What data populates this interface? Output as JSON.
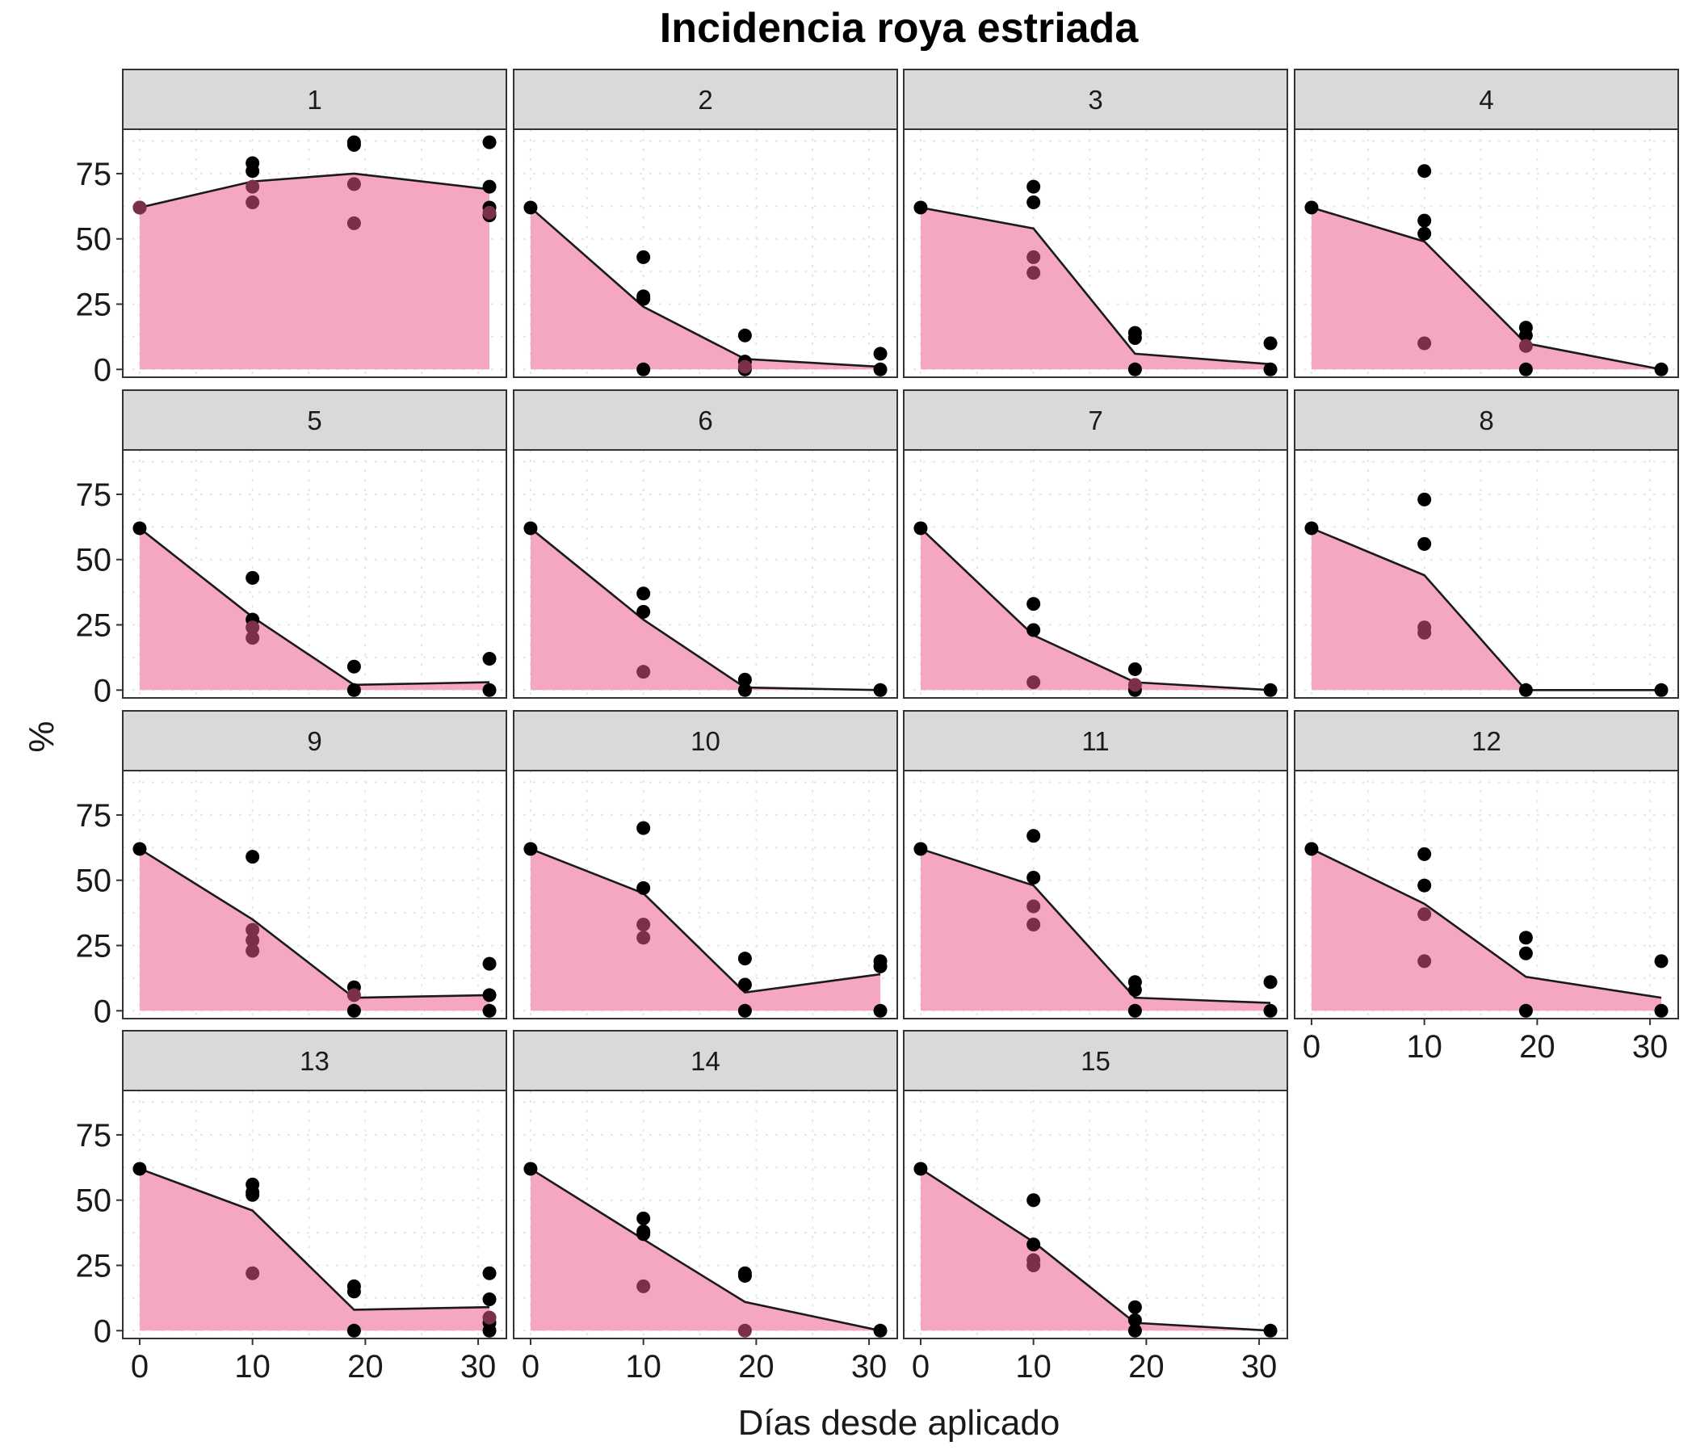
{
  "chart_data": {
    "type": "area",
    "title": "Incidencia roya estriada",
    "xlabel": "Días desde aplicado",
    "ylabel": "%",
    "xlim": [
      -1.5,
      32.5
    ],
    "ylim": [
      -3,
      92
    ],
    "x_ticks": [
      0,
      10,
      20,
      30
    ],
    "y_ticks": [
      0,
      25,
      50,
      75
    ],
    "grid": "dotted",
    "colors": {
      "area_fill": "#f4a6c2",
      "line": "#1a1a1a",
      "point": "#000000",
      "point_alt": "#7a3049",
      "strip_bg": "#d9d9d9",
      "panel_border": "#333333",
      "grid": "#e6e6e6"
    },
    "panels": [
      {
        "label": "1",
        "line": [
          [
            0,
            62
          ],
          [
            10,
            72
          ],
          [
            19,
            75
          ],
          [
            31,
            69
          ]
        ],
        "points": [
          [
            0,
            62
          ],
          [
            10,
            79
          ],
          [
            10,
            76
          ],
          [
            19,
            86
          ],
          [
            19,
            87
          ],
          [
            31,
            87
          ],
          [
            31,
            70
          ],
          [
            31,
            62
          ],
          [
            31,
            59
          ]
        ],
        "points_alt": [
          [
            0,
            62
          ],
          [
            10,
            70
          ],
          [
            10,
            64
          ],
          [
            19,
            71
          ],
          [
            19,
            56
          ],
          [
            31,
            60
          ]
        ]
      },
      {
        "label": "2",
        "line": [
          [
            0,
            62
          ],
          [
            10,
            24
          ],
          [
            19,
            4
          ],
          [
            31,
            1
          ]
        ],
        "points": [
          [
            0,
            62
          ],
          [
            10,
            43
          ],
          [
            10,
            28
          ],
          [
            10,
            27
          ],
          [
            10,
            0
          ],
          [
            19,
            13
          ],
          [
            19,
            3
          ],
          [
            19,
            0
          ],
          [
            31,
            6
          ],
          [
            31,
            0
          ]
        ],
        "points_alt": [
          [
            19,
            1
          ]
        ]
      },
      {
        "label": "3",
        "line": [
          [
            0,
            62
          ],
          [
            10,
            54
          ],
          [
            19,
            6
          ],
          [
            31,
            2
          ]
        ],
        "points": [
          [
            0,
            62
          ],
          [
            10,
            70
          ],
          [
            10,
            64
          ],
          [
            19,
            14
          ],
          [
            19,
            12
          ],
          [
            19,
            0
          ],
          [
            31,
            10
          ],
          [
            31,
            0
          ]
        ],
        "points_alt": [
          [
            10,
            43
          ],
          [
            10,
            37
          ]
        ]
      },
      {
        "label": "4",
        "line": [
          [
            0,
            62
          ],
          [
            10,
            49
          ],
          [
            19,
            10
          ],
          [
            31,
            0
          ]
        ],
        "points": [
          [
            0,
            62
          ],
          [
            10,
            76
          ],
          [
            10,
            57
          ],
          [
            10,
            52
          ],
          [
            19,
            16
          ],
          [
            19,
            13
          ],
          [
            19,
            0
          ],
          [
            31,
            0
          ]
        ],
        "points_alt": [
          [
            10,
            10
          ],
          [
            19,
            9
          ]
        ]
      },
      {
        "label": "5",
        "line": [
          [
            0,
            62
          ],
          [
            10,
            28
          ],
          [
            19,
            2
          ],
          [
            31,
            3
          ]
        ],
        "points": [
          [
            0,
            62
          ],
          [
            10,
            43
          ],
          [
            10,
            27
          ],
          [
            19,
            9
          ],
          [
            19,
            0
          ],
          [
            31,
            12
          ],
          [
            31,
            0
          ]
        ],
        "points_alt": [
          [
            10,
            24
          ],
          [
            10,
            20
          ]
        ]
      },
      {
        "label": "6",
        "line": [
          [
            0,
            62
          ],
          [
            10,
            27
          ],
          [
            19,
            1
          ],
          [
            31,
            0
          ]
        ],
        "points": [
          [
            0,
            62
          ],
          [
            10,
            37
          ],
          [
            10,
            30
          ],
          [
            19,
            4
          ],
          [
            19,
            0
          ],
          [
            31,
            0
          ]
        ],
        "points_alt": [
          [
            10,
            7
          ]
        ]
      },
      {
        "label": "7",
        "line": [
          [
            0,
            62
          ],
          [
            10,
            21
          ],
          [
            19,
            3
          ],
          [
            31,
            0
          ]
        ],
        "points": [
          [
            0,
            62
          ],
          [
            10,
            33
          ],
          [
            10,
            23
          ],
          [
            19,
            8
          ],
          [
            19,
            0
          ],
          [
            31,
            0
          ]
        ],
        "points_alt": [
          [
            10,
            3
          ],
          [
            19,
            2
          ]
        ]
      },
      {
        "label": "8",
        "line": [
          [
            0,
            62
          ],
          [
            10,
            44
          ],
          [
            19,
            0
          ],
          [
            31,
            0
          ]
        ],
        "points": [
          [
            0,
            62
          ],
          [
            10,
            73
          ],
          [
            10,
            56
          ],
          [
            19,
            0
          ],
          [
            31,
            0
          ]
        ],
        "points_alt": [
          [
            10,
            24
          ],
          [
            10,
            22
          ]
        ]
      },
      {
        "label": "9",
        "line": [
          [
            0,
            62
          ],
          [
            10,
            35
          ],
          [
            19,
            5
          ],
          [
            31,
            6
          ]
        ],
        "points": [
          [
            0,
            62
          ],
          [
            10,
            59
          ],
          [
            19,
            9
          ],
          [
            19,
            0
          ],
          [
            31,
            18
          ],
          [
            31,
            6
          ],
          [
            31,
            0
          ]
        ],
        "points_alt": [
          [
            10,
            31
          ],
          [
            10,
            27
          ],
          [
            10,
            23
          ],
          [
            19,
            6
          ]
        ]
      },
      {
        "label": "10",
        "line": [
          [
            0,
            62
          ],
          [
            10,
            45
          ],
          [
            19,
            7
          ],
          [
            31,
            14
          ]
        ],
        "points": [
          [
            0,
            62
          ],
          [
            10,
            70
          ],
          [
            10,
            47
          ],
          [
            19,
            20
          ],
          [
            19,
            10
          ],
          [
            19,
            0
          ],
          [
            31,
            19
          ],
          [
            31,
            17
          ],
          [
            31,
            0
          ]
        ],
        "points_alt": [
          [
            10,
            33
          ],
          [
            10,
            28
          ]
        ]
      },
      {
        "label": "11",
        "line": [
          [
            0,
            62
          ],
          [
            10,
            48
          ],
          [
            19,
            5
          ],
          [
            31,
            3
          ]
        ],
        "points": [
          [
            0,
            62
          ],
          [
            10,
            67
          ],
          [
            10,
            51
          ],
          [
            19,
            11
          ],
          [
            19,
            8
          ],
          [
            19,
            0
          ],
          [
            31,
            11
          ],
          [
            31,
            0
          ]
        ],
        "points_alt": [
          [
            10,
            40
          ],
          [
            10,
            33
          ]
        ]
      },
      {
        "label": "12",
        "line": [
          [
            0,
            62
          ],
          [
            10,
            41
          ],
          [
            19,
            13
          ],
          [
            31,
            5
          ]
        ],
        "points": [
          [
            0,
            62
          ],
          [
            10,
            60
          ],
          [
            10,
            48
          ],
          [
            19,
            28
          ],
          [
            19,
            22
          ],
          [
            19,
            0
          ],
          [
            31,
            19
          ],
          [
            31,
            0
          ]
        ],
        "points_alt": [
          [
            10,
            37
          ],
          [
            10,
            19
          ]
        ]
      },
      {
        "label": "13",
        "line": [
          [
            0,
            62
          ],
          [
            10,
            46
          ],
          [
            19,
            8
          ],
          [
            31,
            9
          ]
        ],
        "points": [
          [
            0,
            62
          ],
          [
            10,
            56
          ],
          [
            10,
            53
          ],
          [
            10,
            52
          ],
          [
            19,
            17
          ],
          [
            19,
            15
          ],
          [
            19,
            0
          ],
          [
            31,
            22
          ],
          [
            31,
            12
          ],
          [
            31,
            3
          ],
          [
            31,
            0
          ]
        ],
        "points_alt": [
          [
            10,
            22
          ],
          [
            31,
            5
          ]
        ]
      },
      {
        "label": "14",
        "line": [
          [
            0,
            62
          ],
          [
            10,
            35
          ],
          [
            19,
            11
          ],
          [
            31,
            0
          ]
        ],
        "points": [
          [
            0,
            62
          ],
          [
            10,
            43
          ],
          [
            10,
            38
          ],
          [
            10,
            37
          ],
          [
            19,
            22
          ],
          [
            19,
            21
          ],
          [
            31,
            0
          ]
        ],
        "points_alt": [
          [
            10,
            17
          ],
          [
            19,
            0
          ]
        ]
      },
      {
        "label": "15",
        "line": [
          [
            0,
            62
          ],
          [
            10,
            34
          ],
          [
            19,
            3
          ],
          [
            31,
            0
          ]
        ],
        "points": [
          [
            0,
            62
          ],
          [
            10,
            50
          ],
          [
            10,
            33
          ],
          [
            19,
            9
          ],
          [
            19,
            4
          ],
          [
            19,
            0
          ],
          [
            31,
            0
          ]
        ],
        "points_alt": [
          [
            10,
            27
          ],
          [
            10,
            25
          ]
        ]
      }
    ]
  }
}
